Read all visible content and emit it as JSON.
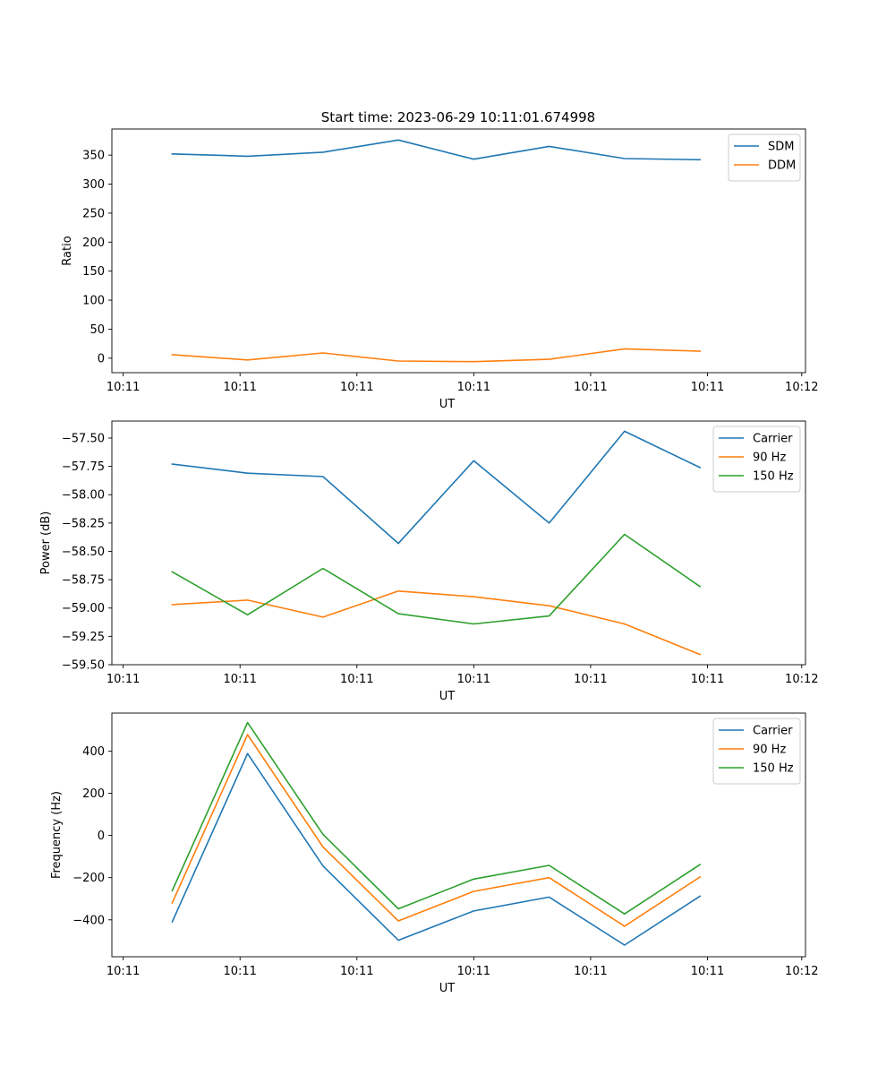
{
  "title": "Start time: 2023-06-29 10:11:01.674998",
  "colors": {
    "blue": "#1f77b4",
    "orange": "#ff7f0e",
    "green": "#2ca02c"
  },
  "chart_data": [
    {
      "type": "line",
      "title": "Start time: 2023-06-29 10:11:01.674998",
      "xlabel": "UT",
      "ylabel": "Ratio",
      "x": [
        1,
        2,
        3,
        4,
        5,
        6,
        7,
        8
      ],
      "xlim": [
        0.2,
        9.4
      ],
      "xticks": [
        0.35,
        1.9,
        3.45,
        5.0,
        6.55,
        8.1,
        9.35
      ],
      "xtick_labels": [
        "10:11",
        "10:11",
        "10:11",
        "10:11",
        "10:11",
        "10:11",
        "10:12"
      ],
      "ylim": [
        -25,
        395
      ],
      "yticks": [
        0,
        50,
        100,
        150,
        200,
        250,
        300,
        350
      ],
      "ytick_labels": [
        "0",
        "50",
        "100",
        "150",
        "200",
        "250",
        "300",
        "350"
      ],
      "legend": "top-right",
      "series": [
        {
          "name": "SDM",
          "color": "#1f77b4",
          "values": [
            352,
            348,
            355,
            376,
            343,
            365,
            344,
            342
          ]
        },
        {
          "name": "DDM",
          "color": "#ff7f0e",
          "values": [
            6,
            -3,
            9,
            -5,
            -6,
            -2,
            16,
            12
          ]
        }
      ]
    },
    {
      "type": "line",
      "title": "",
      "xlabel": "UT",
      "ylabel": "Power (dB)",
      "x": [
        1,
        2,
        3,
        4,
        5,
        6,
        7,
        8
      ],
      "xlim": [
        0.2,
        9.4
      ],
      "xticks": [
        0.35,
        1.9,
        3.45,
        5.0,
        6.55,
        8.1,
        9.35
      ],
      "xtick_labels": [
        "10:11",
        "10:11",
        "10:11",
        "10:11",
        "10:11",
        "10:11",
        "10:12"
      ],
      "ylim": [
        -59.5,
        -57.35
      ],
      "yticks": [
        -59.5,
        -59.25,
        -59.0,
        -58.75,
        -58.5,
        -58.25,
        -58.0,
        -57.75,
        -57.5
      ],
      "ytick_labels": [
        "−59.50",
        "−59.25",
        "−59.00",
        "−58.75",
        "−58.50",
        "−58.25",
        "−58.00",
        "−57.75",
        "−57.50"
      ],
      "legend": "top-right",
      "series": [
        {
          "name": "Carrier",
          "color": "#1f77b4",
          "values": [
            -57.73,
            -57.81,
            -57.84,
            -58.43,
            -57.7,
            -58.25,
            -57.44,
            -57.76
          ]
        },
        {
          "name": "90 Hz",
          "color": "#ff7f0e",
          "values": [
            -58.97,
            -58.93,
            -59.08,
            -58.85,
            -58.9,
            -58.98,
            -59.14,
            -59.41
          ]
        },
        {
          "name": "150 Hz",
          "color": "#2ca02c",
          "values": [
            -58.68,
            -59.06,
            -58.65,
            -59.05,
            -59.14,
            -59.07,
            -58.35,
            -58.81
          ]
        }
      ]
    },
    {
      "type": "line",
      "title": "",
      "xlabel": "UT",
      "ylabel": "Frequency (Hz)",
      "x": [
        1,
        2,
        3,
        4,
        5,
        6,
        7,
        8
      ],
      "xlim": [
        0.2,
        9.4
      ],
      "xticks": [
        0.35,
        1.9,
        3.45,
        5.0,
        6.55,
        8.1,
        9.35
      ],
      "xtick_labels": [
        "10:11",
        "10:11",
        "10:11",
        "10:11",
        "10:11",
        "10:11",
        "10:12"
      ],
      "ylim": [
        -575,
        580
      ],
      "yticks": [
        -400,
        -200,
        0,
        200,
        400
      ],
      "ytick_labels": [
        "−400",
        "−200",
        "0",
        "200",
        "400"
      ],
      "legend": "top-right",
      "series": [
        {
          "name": "Carrier",
          "color": "#1f77b4",
          "values": [
            -410,
            388,
            -145,
            -497,
            -358,
            -292,
            -520,
            -288
          ]
        },
        {
          "name": "90 Hz",
          "color": "#ff7f0e",
          "values": [
            -320,
            478,
            -55,
            -405,
            -265,
            -200,
            -430,
            -197
          ]
        },
        {
          "name": "150 Hz",
          "color": "#2ca02c",
          "values": [
            -262,
            535,
            5,
            -348,
            -207,
            -142,
            -372,
            -138
          ]
        }
      ]
    }
  ]
}
